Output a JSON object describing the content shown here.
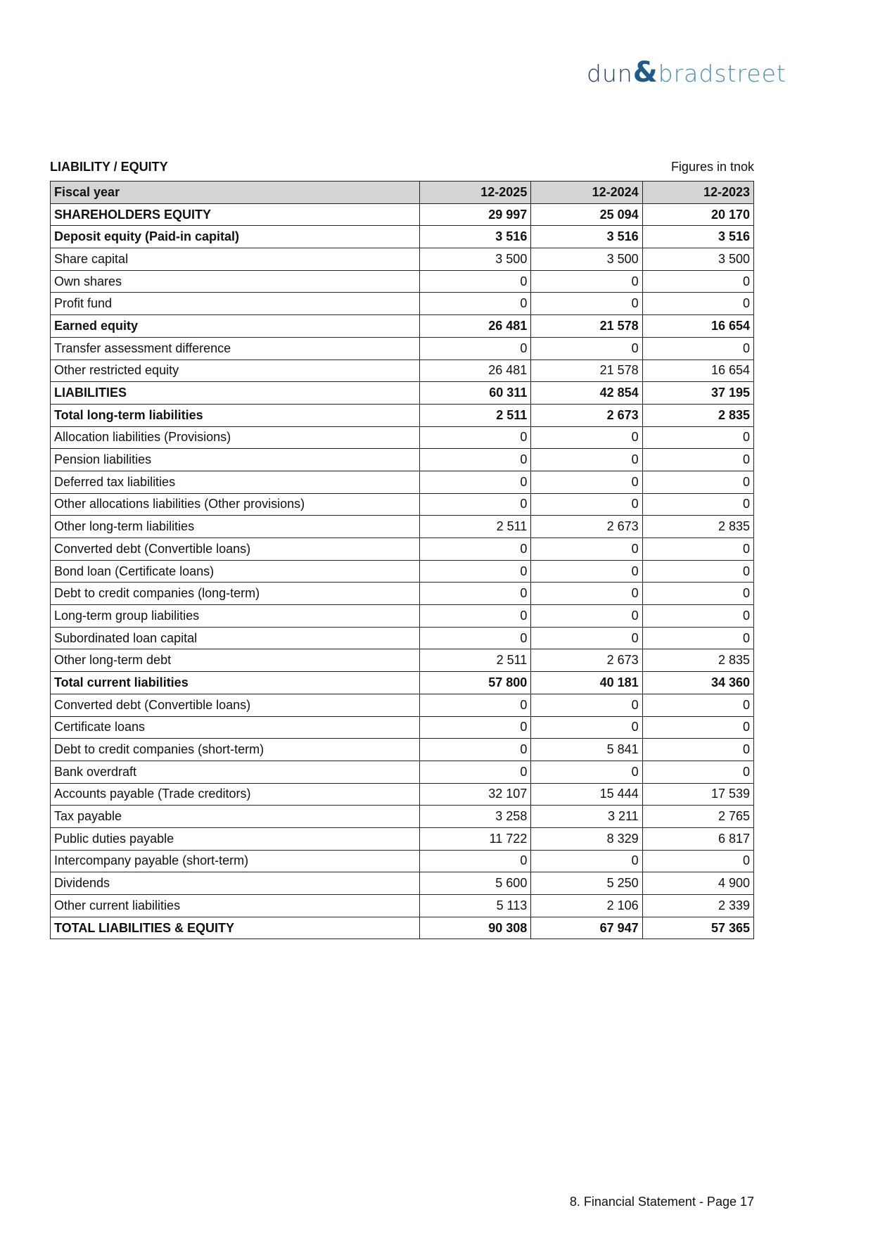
{
  "logo": {
    "text_left": "dun",
    "ampersand": "&",
    "text_right": "bradstreet",
    "colors": {
      "dun": "#1e3f66",
      "bradstreet": "#4a8fb5"
    }
  },
  "title": "LIABILITY / EQUITY",
  "units": "Figures in tnok",
  "table": {
    "header": [
      "Fiscal year",
      "12-2025",
      "12-2024",
      "12-2023"
    ],
    "rows": [
      {
        "label": "SHAREHOLDERS EQUITY",
        "values": [
          "29 997",
          "25 094",
          "20 170"
        ],
        "bold": true
      },
      {
        "label": "Deposit equity (Paid-in capital)",
        "values": [
          "3 516",
          "3 516",
          "3 516"
        ],
        "bold": true
      },
      {
        "label": "Share capital",
        "values": [
          "3 500",
          "3 500",
          "3 500"
        ]
      },
      {
        "label": "Own shares",
        "values": [
          "0",
          "0",
          "0"
        ]
      },
      {
        "label": "Profit fund",
        "values": [
          "0",
          "0",
          "0"
        ]
      },
      {
        "label": "Earned equity",
        "values": [
          "26 481",
          "21 578",
          "16 654"
        ],
        "bold": true
      },
      {
        "label": "Transfer assessment difference",
        "values": [
          "0",
          "0",
          "0"
        ]
      },
      {
        "label": "Other restricted equity",
        "values": [
          "26 481",
          "21 578",
          "16 654"
        ]
      },
      {
        "label": "LIABILITIES",
        "values": [
          "60 311",
          "42 854",
          "37 195"
        ],
        "bold": true
      },
      {
        "label": "Total long-term liabilities",
        "values": [
          "2 511",
          "2 673",
          "2 835"
        ],
        "bold": true
      },
      {
        "label": "Allocation liabilities (Provisions)",
        "values": [
          "0",
          "0",
          "0"
        ]
      },
      {
        "label": "Pension liabilities",
        "values": [
          "0",
          "0",
          "0"
        ]
      },
      {
        "label": "Deferred tax liabilities",
        "values": [
          "0",
          "0",
          "0"
        ]
      },
      {
        "label": "Other allocations liabilities (Other provisions)",
        "values": [
          "0",
          "0",
          "0"
        ]
      },
      {
        "label": "Other long-term liabilities",
        "values": [
          "2 511",
          "2 673",
          "2 835"
        ]
      },
      {
        "label": "Converted debt (Convertible loans)",
        "values": [
          "0",
          "0",
          "0"
        ]
      },
      {
        "label": "Bond loan (Certificate loans)",
        "values": [
          "0",
          "0",
          "0"
        ]
      },
      {
        "label": "Debt to credit companies (long-term)",
        "values": [
          "0",
          "0",
          "0"
        ]
      },
      {
        "label": "Long-term group liabilities",
        "values": [
          "0",
          "0",
          "0"
        ]
      },
      {
        "label": "Subordinated loan capital",
        "values": [
          "0",
          "0",
          "0"
        ]
      },
      {
        "label": "Other long-term debt",
        "values": [
          "2 511",
          "2 673",
          "2 835"
        ]
      },
      {
        "label": "Total current liabilities",
        "values": [
          "57 800",
          "40 181",
          "34 360"
        ],
        "bold": true
      },
      {
        "label": "Converted debt (Convertible loans)",
        "values": [
          "0",
          "0",
          "0"
        ]
      },
      {
        "label": "Certificate loans",
        "values": [
          "0",
          "0",
          "0"
        ]
      },
      {
        "label": "Debt to credit companies (short-term)",
        "values": [
          "0",
          "5 841",
          "0"
        ]
      },
      {
        "label": "Bank overdraft",
        "values": [
          "0",
          "0",
          "0"
        ]
      },
      {
        "label": "Accounts payable (Trade creditors)",
        "values": [
          "32 107",
          "15 444",
          "17 539"
        ]
      },
      {
        "label": "Tax payable",
        "values": [
          "3 258",
          "3 211",
          "2 765"
        ]
      },
      {
        "label": "Public duties payable",
        "values": [
          "11 722",
          "8 329",
          "6 817"
        ]
      },
      {
        "label": "Intercompany payable (short-term)",
        "values": [
          "0",
          "0",
          "0"
        ]
      },
      {
        "label": "Dividends",
        "values": [
          "5 600",
          "5 250",
          "4 900"
        ]
      },
      {
        "label": "Other current liabilities",
        "values": [
          "5 113",
          "2 106",
          "2 339"
        ]
      },
      {
        "label": "TOTAL LIABILITIES & EQUITY",
        "values": [
          "90 308",
          "67 947",
          "57 365"
        ],
        "bold": true
      }
    ]
  },
  "footer": "8. Financial Statement - Page 17"
}
